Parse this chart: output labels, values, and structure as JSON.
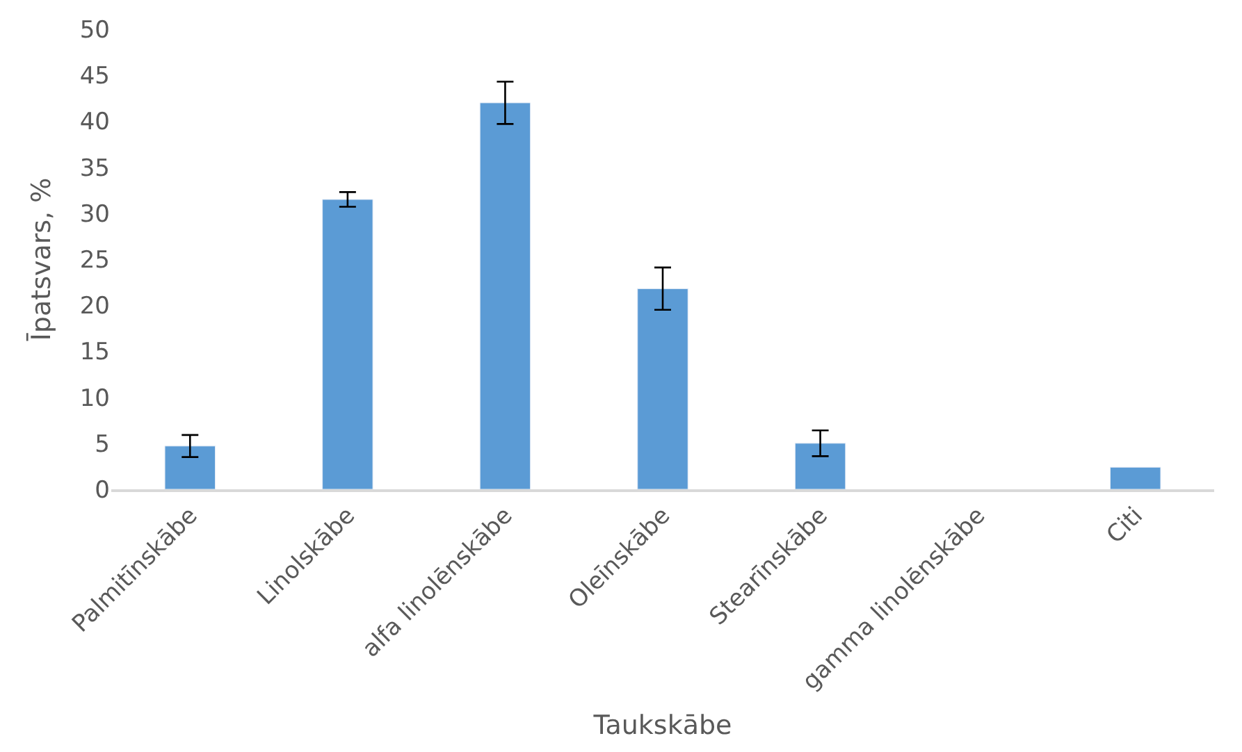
{
  "chart_data": {
    "type": "bar",
    "xlabel": "Taukskābe",
    "ylabel": "Īpatsvars, %",
    "categories": [
      "Palmitīnskābe",
      "Linolskābe",
      "alfa linolēnskābe",
      "Oleīnskābe",
      "Stearīnskābe",
      "gamma linolēnskābe",
      "Citi"
    ],
    "values": [
      4.7,
      31.5,
      42.0,
      21.8,
      5.0,
      null,
      2.4
    ],
    "errors": [
      1.2,
      0.8,
      2.3,
      2.3,
      1.4,
      null,
      null
    ],
    "color": "#5b9bd5",
    "ylim": [
      0,
      50
    ],
    "yticks": [
      0,
      5,
      10,
      15,
      20,
      25,
      30,
      35,
      40,
      45,
      50
    ]
  }
}
